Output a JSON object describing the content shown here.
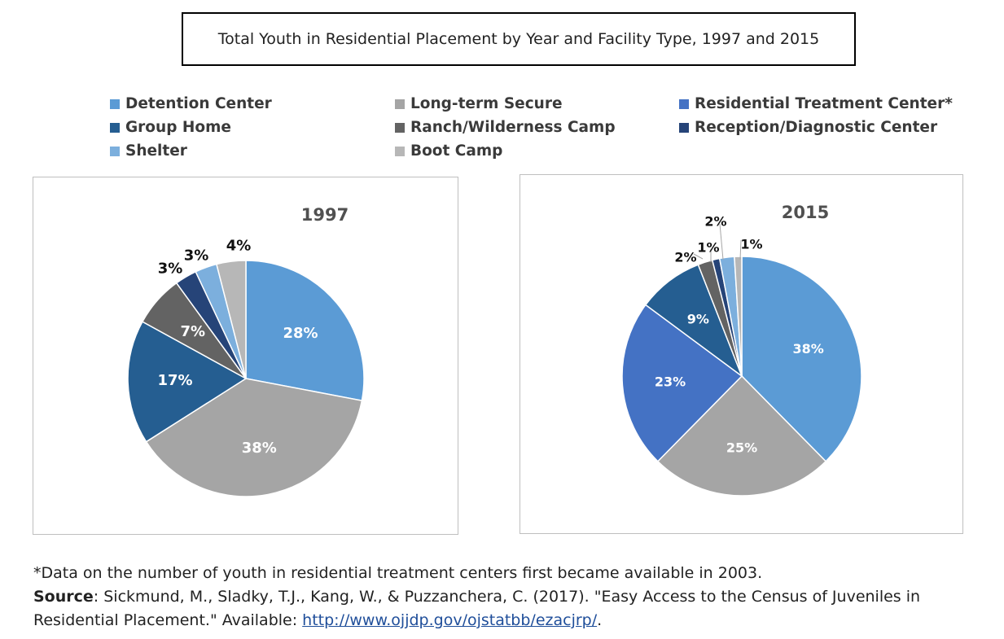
{
  "title": "Total Youth in Residential Placement by Year and Facility Type, 1997 and 2015",
  "legend": [
    {
      "label": "Detention Center",
      "color": "#5b9bd5"
    },
    {
      "label": "Long-term Secure",
      "color": "#a5a5a5"
    },
    {
      "label": "Residential Treatment Center*",
      "color": "#4472c4"
    },
    {
      "label": "Group Home",
      "color": "#255e91"
    },
    {
      "label": "Ranch/Wilderness Camp",
      "color": "#636363"
    },
    {
      "label": "Reception/Diagnostic Center",
      "color": "#264478"
    },
    {
      "label": "Shelter",
      "color": "#7cafdd"
    },
    {
      "label": "Boot Camp",
      "color": "#b7b7b7"
    }
  ],
  "chart_data": [
    {
      "type": "pie",
      "title": "1997",
      "slices": [
        {
          "category": "Detention Center",
          "value": 28,
          "label": "28%"
        },
        {
          "category": "Long-term Secure",
          "value": 38,
          "label": "38%"
        },
        {
          "category": "Group Home",
          "value": 17,
          "label": "17%"
        },
        {
          "category": "Ranch/Wilderness Camp",
          "value": 7,
          "label": "7%"
        },
        {
          "category": "Reception/Diagnostic Center",
          "value": 3,
          "label": "3%"
        },
        {
          "category": "Shelter",
          "value": 3,
          "label": "3%"
        },
        {
          "category": "Boot Camp",
          "value": 4,
          "label": "4%"
        }
      ]
    },
    {
      "type": "pie",
      "title": "2015",
      "slices": [
        {
          "category": "Detention Center",
          "value": 38,
          "label": "38%"
        },
        {
          "category": "Long-term Secure",
          "value": 25,
          "label": "25%"
        },
        {
          "category": "Residential Treatment Center*",
          "value": 23,
          "label": "23%"
        },
        {
          "category": "Group Home",
          "value": 9,
          "label": "9%"
        },
        {
          "category": "Ranch/Wilderness Camp",
          "value": 2,
          "label": "2%"
        },
        {
          "category": "Reception/Diagnostic Center",
          "value": 1,
          "label": "1%"
        },
        {
          "category": "Shelter",
          "value": 2,
          "label": "2%"
        },
        {
          "category": "Boot Camp",
          "value": 1,
          "label": "1%"
        }
      ]
    }
  ],
  "footnote": {
    "note": "*Data on the number of youth in residential treatment centers first became available in 2003.",
    "source_label": "Source",
    "source_text": ": Sickmund, M., Sladky, T.J., Kang, W., & Puzzanchera, C. (2017). \"Easy Access to the Census of Juveniles in",
    "source_text2": "Residential Placement.\" Available: ",
    "link": "http://www.ojjdp.gov/ojstatbb/ezacjrp/",
    "end": "."
  }
}
